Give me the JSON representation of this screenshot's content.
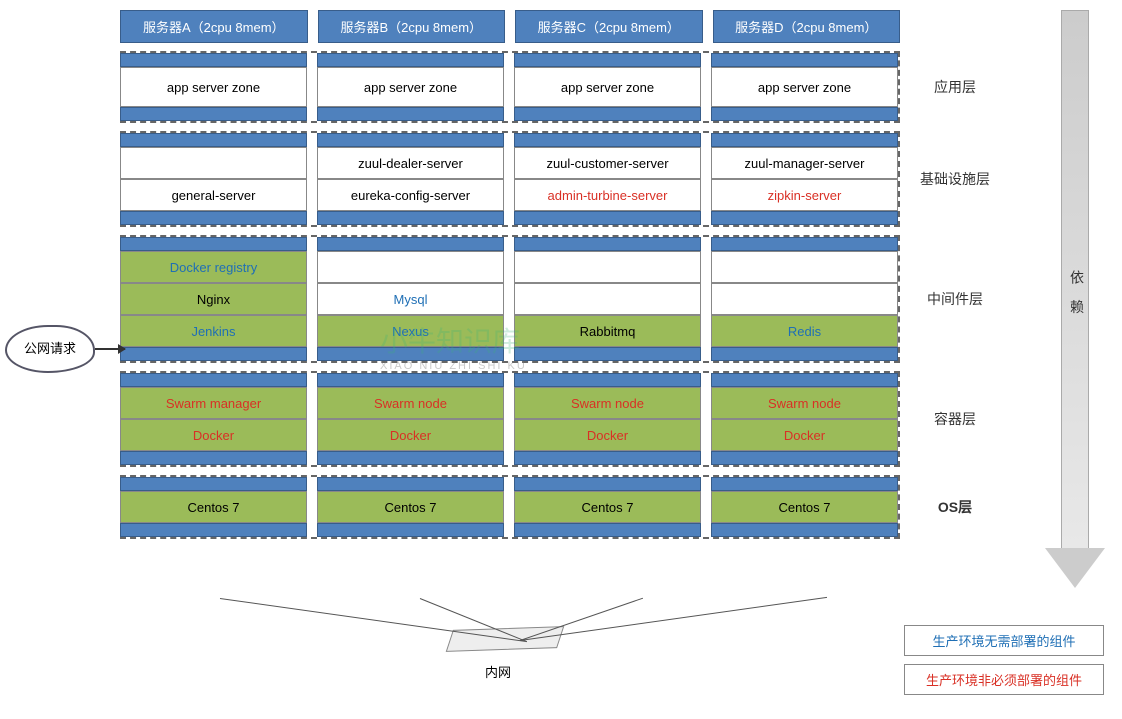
{
  "colors": {
    "header_bg": "#4f81bd",
    "header_border": "#385d8a",
    "green_bg": "#9bbb59",
    "text_blue": "#1f6fb5",
    "text_red": "#d93025",
    "text_black": "#000000",
    "dashed_border": "#666666"
  },
  "servers": [
    {
      "name": "服务器A（2cpu 8mem）"
    },
    {
      "name": "服务器B（2cpu 8mem）"
    },
    {
      "name": "服务器C（2cpu 8mem）"
    },
    {
      "name": "服务器D（2cpu 8mem）"
    }
  ],
  "layers": {
    "app": {
      "label": "应用层",
      "rows": [
        [
          {
            "text": "app server zone",
            "bg": "white",
            "color": "black",
            "tall": true
          },
          {
            "text": "app server zone",
            "bg": "white",
            "color": "black",
            "tall": true
          },
          {
            "text": "app server zone",
            "bg": "white",
            "color": "black",
            "tall": true
          },
          {
            "text": "app server zone",
            "bg": "white",
            "color": "black",
            "tall": true
          }
        ]
      ]
    },
    "infra": {
      "label": "基础设施层",
      "rows": [
        [
          {
            "text": "",
            "bg": "white",
            "color": "black"
          },
          {
            "text": "zuul-dealer-server",
            "bg": "white",
            "color": "black"
          },
          {
            "text": "zuul-customer-server",
            "bg": "white",
            "color": "black"
          },
          {
            "text": "zuul-manager-server",
            "bg": "white",
            "color": "black"
          }
        ],
        [
          {
            "text": "general-server",
            "bg": "white",
            "color": "black"
          },
          {
            "text": "eureka-config-server",
            "bg": "white",
            "color": "black"
          },
          {
            "text": "admin-turbine-server",
            "bg": "white",
            "color": "red"
          },
          {
            "text": "zipkin-server",
            "bg": "white",
            "color": "red"
          }
        ]
      ]
    },
    "middleware": {
      "label": "中间件层",
      "rows": [
        [
          {
            "text": "Docker registry",
            "bg": "green",
            "color": "blue"
          },
          {
            "text": "",
            "bg": "white",
            "color": "black"
          },
          {
            "text": "",
            "bg": "white",
            "color": "black"
          },
          {
            "text": "",
            "bg": "white",
            "color": "black"
          }
        ],
        [
          {
            "text": "Nginx",
            "bg": "green",
            "color": "black"
          },
          {
            "text": "Mysql",
            "bg": "white",
            "color": "blue"
          },
          {
            "text": "",
            "bg": "white",
            "color": "black"
          },
          {
            "text": "",
            "bg": "white",
            "color": "black"
          }
        ],
        [
          {
            "text": "Jenkins",
            "bg": "green",
            "color": "blue"
          },
          {
            "text": "Nexus",
            "bg": "green",
            "color": "blue"
          },
          {
            "text": "Rabbitmq",
            "bg": "green",
            "color": "black"
          },
          {
            "text": "Redis",
            "bg": "green",
            "color": "blue"
          }
        ]
      ]
    },
    "container": {
      "label": "容器层",
      "rows": [
        [
          {
            "text": "Swarm manager",
            "bg": "green",
            "color": "red"
          },
          {
            "text": "Swarm node",
            "bg": "green",
            "color": "red"
          },
          {
            "text": "Swarm node",
            "bg": "green",
            "color": "red"
          },
          {
            "text": "Swarm node",
            "bg": "green",
            "color": "red"
          }
        ],
        [
          {
            "text": "Docker",
            "bg": "green",
            "color": "red"
          },
          {
            "text": "Docker",
            "bg": "green",
            "color": "red"
          },
          {
            "text": "Docker",
            "bg": "green",
            "color": "red"
          },
          {
            "text": "Docker",
            "bg": "green",
            "color": "red"
          }
        ]
      ]
    },
    "os": {
      "label": "OS层",
      "rows": [
        [
          {
            "text": "Centos 7",
            "bg": "green",
            "color": "black"
          },
          {
            "text": "Centos 7",
            "bg": "green",
            "color": "black"
          },
          {
            "text": "Centos 7",
            "bg": "green",
            "color": "black"
          },
          {
            "text": "Centos 7",
            "bg": "green",
            "color": "black"
          }
        ]
      ]
    }
  },
  "cloud": {
    "label": "公网请求"
  },
  "dependency_label": "依 赖",
  "switch_label": "内网",
  "legend": {
    "blue": "生产环境无需部署的组件",
    "red": "生产环境非必须部署的组件"
  },
  "watermark": {
    "main": "小牛知识库",
    "sub": "XIAO NIU ZHI SHI KU"
  }
}
